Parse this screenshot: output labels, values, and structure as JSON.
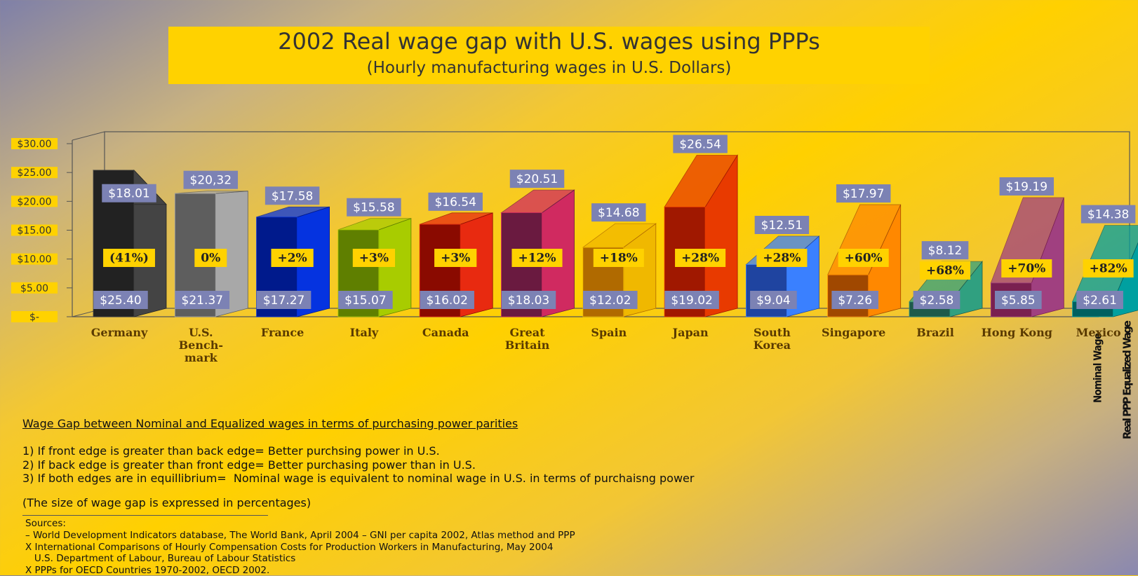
{
  "chart_data": {
    "type": "bar3d",
    "title": "2002 Real wage gap with U.S. wages using PPPs",
    "subtitle": "(Hourly manufacturing wages in U.S. Dollars)",
    "categories": [
      "Germany",
      "U.S.\nBench-\nmark",
      "France",
      "Italy",
      "Canada",
      "Great\nBritain",
      "Spain",
      "Japan",
      "South\nKorea",
      "Singapore",
      "Brazil",
      "Hong Kong",
      "Mexico"
    ],
    "series": [
      {
        "name": "Nominal Wage",
        "colors": [
          "#222222",
          "#5e5e5e",
          "#001a8c",
          "#5f7f00",
          "#8a0a00",
          "#6a1a40",
          "#b06a00",
          "#a01800",
          "#1f44a0",
          "#a04800",
          "#1f5a4a",
          "#7a2050",
          "#006060"
        ],
        "values": [
          25.4,
          21.37,
          17.27,
          15.07,
          16.02,
          18.03,
          12.02,
          19.02,
          9.04,
          7.26,
          2.58,
          5.85,
          2.61
        ],
        "value_labels": [
          "$25.40",
          "$21.37",
          "$17.27",
          "$15.07",
          "$16.02",
          "$18.03",
          "$12.02",
          "$19.02",
          "$9.04",
          "$7.26",
          "$2.58",
          "$5.85",
          "$2.61"
        ]
      },
      {
        "name": "Real PPP Equalized Wage",
        "colors": [
          "#444444",
          "#a8a8a8",
          "#0533e0",
          "#a8cc00",
          "#e82a10",
          "#d02a60",
          "#f0b800",
          "#e83a00",
          "#3a80ff",
          "#ff8800",
          "#30a080",
          "#a04080",
          "#00a0a0"
        ],
        "values": [
          18.01,
          20.32,
          17.58,
          15.58,
          16.54,
          20.51,
          14.68,
          26.54,
          12.51,
          17.97,
          8.12,
          19.19,
          14.38
        ],
        "value_labels": [
          "$18.01",
          "$20,32",
          "$17.58",
          "$15.58",
          "$16.54",
          "$20.51",
          "$14.68",
          "$26.54",
          "$12.51",
          "$17.97",
          "$8.12",
          "$19.19",
          "$14.38"
        ]
      }
    ],
    "gap_labels": [
      "(41%)",
      "0%",
      "+2%",
      "+3%",
      "+3%",
      "+12%",
      "+18%",
      "+28%",
      "+28%",
      "+60%",
      "+68%",
      "+70%",
      "+82%"
    ],
    "ylim": [
      0,
      30
    ],
    "yticks": [
      {
        "value": 0,
        "label": "$-"
      },
      {
        "value": 5,
        "label": "$5.00"
      },
      {
        "value": 10,
        "label": "$10.00"
      },
      {
        "value": 15,
        "label": "$15.00"
      },
      {
        "value": 20,
        "label": "$20.00"
      },
      {
        "value": 25,
        "label": "$25.00"
      },
      {
        "value": 30,
        "label": "$30.00"
      }
    ],
    "grid": false
  },
  "notes": {
    "heading": "Wage Gap between Nominal and Equalized wages in terms of purchasing power parities",
    "lines": [
      "1) If front edge is greater than back edge= Better purchsing power in U.S.",
      "2) If back edge is greater than front edge= Better purchasing power than in U.S.",
      "3) If both edges are in equillibrium=  Nominal wage is equivalent to nominal wage in U.S. in terms of purchaisng power"
    ],
    "size_note": "(The size of wage gap is expressed in percentages)",
    "sources": [
      "Sources:",
      "– World Development Indicators database, The World Bank, April 2004 – GNI per capita 2002, Atlas method and PPP",
      "X International Comparisons of Hourly Compensation Costs for Production Workers in Manufacturing, May 2004",
      "   U.S. Department of Labour, Bureau of Labour Statistics",
      "X PPPs for OECD Countries 1970-2002, OECD 2002."
    ]
  }
}
